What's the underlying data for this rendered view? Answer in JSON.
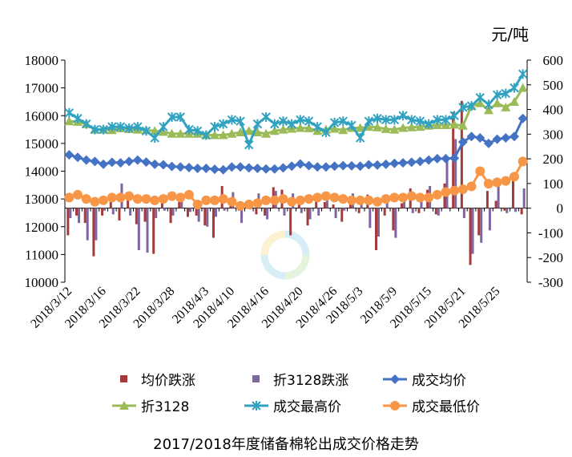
{
  "chart_data": {
    "type": "bar+line",
    "title": "2017/2018年度储备棉轮出成交价格走势",
    "right_unit_label": "元/吨",
    "ylim_left": [
      10000,
      18000
    ],
    "yticks_left": [
      10000,
      11000,
      12000,
      13000,
      14000,
      15000,
      16000,
      17000,
      18000
    ],
    "ylim_right": [
      -300,
      600
    ],
    "yticks_right": [
      -300,
      -200,
      -100,
      0,
      100,
      200,
      300,
      400,
      500,
      600
    ],
    "grid": false,
    "legend_position": "bottom",
    "x": [
      "2018/3/12",
      "2018/3/13",
      "2018/3/14",
      "2018/3/15",
      "2018/3/16",
      "2018/3/19",
      "2018/3/20",
      "2018/3/21",
      "2018/3/22",
      "2018/3/23",
      "2018/3/26",
      "2018/3/27",
      "2018/3/28",
      "2018/3/29",
      "2018/3/30",
      "2018/4/2",
      "2018/4/3",
      "2018/4/4",
      "2018/4/9",
      "2018/4/10",
      "2018/4/11",
      "2018/4/12",
      "2018/4/13",
      "2018/4/16",
      "2018/4/17",
      "2018/4/18",
      "2018/4/19",
      "2018/4/20",
      "2018/4/23",
      "2018/4/24",
      "2018/4/25",
      "2018/4/26",
      "2018/4/27",
      "2018/5/2",
      "2018/5/3",
      "2018/5/4",
      "2018/5/7",
      "2018/5/8",
      "2018/5/9",
      "2018/5/10",
      "2018/5/11",
      "2018/5/14",
      "2018/5/15",
      "2018/5/16",
      "2018/5/17",
      "2018/5/18",
      "2018/5/21",
      "2018/5/22",
      "2018/5/23",
      "2018/5/24",
      "2018/5/25",
      "2018/5/28",
      "2018/5/29",
      "2018/5/30"
    ],
    "x_tick_labels": [
      "2018/3/12",
      "2018/3/16",
      "2018/3/22",
      "2018/3/28",
      "2018/4/3",
      "2018/4/10",
      "2018/4/16",
      "2018/4/20",
      "2018/4/26",
      "2018/5/3",
      "2018/5/9",
      "2018/5/15",
      "2018/5/21",
      "2018/5/25"
    ],
    "series": [
      {
        "name": "均价跌涨",
        "kind": "bar",
        "axis": "right",
        "color": "#a63a3a",
        "values": [
          -110,
          -30,
          -60,
          -195,
          -30,
          25,
          -50,
          55,
          -65,
          -55,
          -185,
          20,
          -60,
          25,
          -35,
          -30,
          -70,
          -120,
          90,
          20,
          -10,
          30,
          -25,
          -30,
          85,
          75,
          -110,
          40,
          -70,
          55,
          25,
          15,
          -55,
          45,
          -20,
          55,
          -170,
          -30,
          -90,
          20,
          80,
          -20,
          75,
          -25,
          100,
          390,
          435,
          -230,
          -110,
          70,
          30,
          -10,
          130,
          -25
        ]
      },
      {
        "name": "折3128跌涨",
        "kind": "bar",
        "axis": "right",
        "color": "#7f65a1",
        "values": [
          -40,
          -60,
          -130,
          -130,
          -10,
          -25,
          100,
          -30,
          -170,
          -180,
          -40,
          -10,
          -30,
          35,
          -15,
          -55,
          -75,
          -35,
          -10,
          65,
          -60,
          -5,
          60,
          -45,
          70,
          -30,
          60,
          -20,
          -45,
          -30,
          40,
          -40,
          -10,
          60,
          45,
          -80,
          -115,
          55,
          -120,
          60,
          -20,
          60,
          90,
          -30,
          210,
          280,
          -40,
          -185,
          -140,
          -90,
          105,
          -20,
          -15,
          80
        ]
      },
      {
        "name": "成交均价",
        "kind": "line",
        "axis": "left",
        "color": "#4472c4",
        "marker": "diamond",
        "values": [
          14590,
          14500,
          14400,
          14350,
          14250,
          14320,
          14300,
          14350,
          14400,
          14330,
          14250,
          14230,
          14170,
          14150,
          14130,
          14100,
          14100,
          14070,
          14050,
          14150,
          14150,
          14120,
          14100,
          14080,
          14080,
          14120,
          14180,
          14260,
          14200,
          14150,
          14150,
          14180,
          14200,
          14190,
          14180,
          14230,
          14220,
          14250,
          14280,
          14300,
          14320,
          14350,
          14400,
          14450,
          14450,
          14470,
          15050,
          15250,
          15200,
          15000,
          15150,
          15200,
          15250,
          15900
        ]
      },
      {
        "name": "折3128",
        "kind": "line",
        "axis": "left",
        "color": "#9bbb59",
        "marker": "triangle",
        "values": [
          15800,
          15780,
          15700,
          15500,
          15500,
          15480,
          15550,
          15520,
          15500,
          15480,
          15450,
          15420,
          15350,
          15350,
          15350,
          15350,
          15300,
          15300,
          15300,
          15350,
          15400,
          15450,
          15400,
          15350,
          15450,
          15500,
          15530,
          15560,
          15550,
          15450,
          15500,
          15530,
          15480,
          15560,
          15560,
          15600,
          15580,
          15520,
          15500,
          15560,
          15580,
          15600,
          15640,
          15660,
          15660,
          15680,
          15640,
          16350,
          16450,
          16200,
          16450,
          16300,
          16500,
          17000
        ]
      },
      {
        "name": "成交最高价",
        "kind": "line",
        "axis": "left",
        "color": "#31a2c1",
        "marker": "star",
        "values": [
          16100,
          15900,
          15700,
          15500,
          15500,
          15600,
          15600,
          15550,
          15600,
          15450,
          15200,
          15600,
          15950,
          15950,
          15500,
          15450,
          15300,
          15600,
          15700,
          15850,
          15800,
          14950,
          15700,
          15950,
          15700,
          15800,
          15700,
          15850,
          15800,
          15600,
          15400,
          15750,
          15800,
          15650,
          15200,
          15800,
          15900,
          15850,
          15850,
          16000,
          15850,
          15800,
          15700,
          15850,
          15850,
          16000,
          16300,
          16350,
          16650,
          16400,
          16750,
          16800,
          17000,
          17500
        ]
      },
      {
        "name": "成交最低价",
        "kind": "line",
        "axis": "left",
        "color": "#f79646",
        "marker": "circle",
        "values": [
          13050,
          13150,
          13000,
          12900,
          12950,
          13050,
          13050,
          13100,
          13000,
          13000,
          12950,
          13000,
          13100,
          13050,
          13150,
          12800,
          12950,
          12950,
          13000,
          12900,
          12750,
          12800,
          12850,
          12950,
          12950,
          13000,
          12900,
          12950,
          13000,
          13050,
          13100,
          13050,
          13000,
          12950,
          12950,
          12950,
          12900,
          13000,
          13050,
          13050,
          13100,
          13050,
          13050,
          13150,
          13250,
          13300,
          13350,
          13450,
          14000,
          13550,
          13600,
          13650,
          13800,
          14350
        ]
      }
    ]
  }
}
